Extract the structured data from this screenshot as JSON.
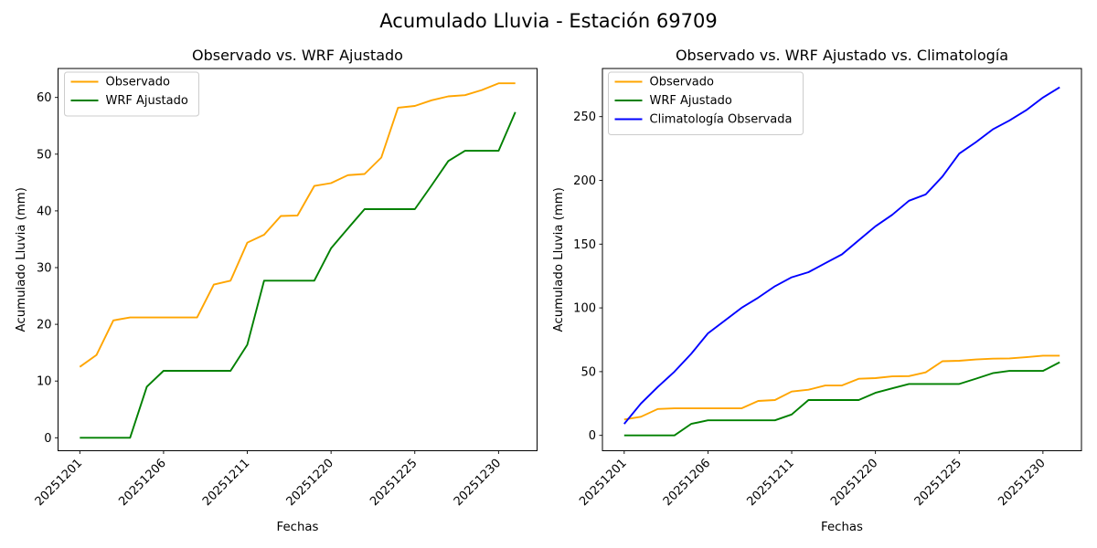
{
  "figure": {
    "suptitle": "Acumulado Lluvia - Estación 69709"
  },
  "chart_data": [
    {
      "type": "line",
      "title": "Observado vs. WRF Ajustado",
      "xlabel": "Fechas",
      "ylabel": "Acumulado Lluvia (mm)",
      "x_categories": [
        "20251201",
        "20251202",
        "20251203",
        "20251204",
        "20251205",
        "20251206",
        "20251207",
        "20251208",
        "20251209",
        "20251210",
        "20251211",
        "20251216",
        "20251217",
        "20251218",
        "20251219",
        "20251220",
        "20251221",
        "20251222",
        "20251223",
        "20251224",
        "20251225",
        "20251226",
        "20251227",
        "20251228",
        "20251229",
        "20251230",
        "20251231"
      ],
      "x_tick_indices": [
        0,
        5,
        10,
        15,
        20,
        25
      ],
      "x_tick_labels": [
        "20251201",
        "20251206",
        "20251211",
        "20251220",
        "20251225",
        "20251230"
      ],
      "y_ticks": [
        0,
        10,
        20,
        30,
        40,
        50,
        60
      ],
      "ylim": [
        -3.1,
        65.6
      ],
      "grid": false,
      "legend_position": "upper left",
      "series": [
        {
          "name": "Observado",
          "color": "#FFA500",
          "values": [
            12.5,
            14.6,
            20.7,
            21.2,
            21.2,
            21.2,
            21.2,
            21.2,
            27.0,
            27.7,
            34.4,
            35.8,
            39.1,
            39.2,
            44.4,
            44.9,
            46.3,
            46.5,
            49.4,
            58.2,
            58.5,
            59.5,
            60.2,
            60.4,
            61.3,
            62.5,
            62.5
          ]
        },
        {
          "name": "WRF Ajustado",
          "color": "#008000",
          "values": [
            0,
            0,
            0,
            0,
            9.0,
            11.8,
            11.8,
            11.8,
            11.8,
            11.8,
            16.4,
            27.7,
            27.7,
            27.7,
            27.7,
            33.4,
            36.9,
            40.3,
            40.3,
            40.3,
            40.3,
            44.5,
            48.8,
            50.6,
            50.6,
            50.6,
            57.4
          ]
        }
      ]
    },
    {
      "type": "line",
      "title": "Observado vs. WRF Ajustado vs. Climatología",
      "xlabel": "Fechas",
      "ylabel": "Acumulado Lluvia (mm)",
      "x_categories": [
        "20251201",
        "20251202",
        "20251203",
        "20251204",
        "20251205",
        "20251206",
        "20251207",
        "20251208",
        "20251209",
        "20251210",
        "20251211",
        "20251216",
        "20251217",
        "20251218",
        "20251219",
        "20251220",
        "20251221",
        "20251222",
        "20251223",
        "20251224",
        "20251225",
        "20251226",
        "20251227",
        "20251228",
        "20251229",
        "20251230",
        "20251231"
      ],
      "x_tick_indices": [
        0,
        5,
        10,
        15,
        20,
        25
      ],
      "x_tick_labels": [
        "20251201",
        "20251206",
        "20251211",
        "20251220",
        "20251225",
        "20251230"
      ],
      "y_ticks": [
        0,
        50,
        100,
        150,
        200,
        250
      ],
      "ylim": [
        -13.7,
        287.1
      ],
      "grid": false,
      "legend_position": "upper left",
      "series": [
        {
          "name": "Observado",
          "color": "#FFA500",
          "values": [
            12.5,
            14.6,
            20.7,
            21.2,
            21.2,
            21.2,
            21.2,
            21.2,
            27.0,
            27.7,
            34.4,
            35.8,
            39.1,
            39.2,
            44.4,
            44.9,
            46.3,
            46.5,
            49.4,
            58.2,
            58.5,
            59.5,
            60.2,
            60.4,
            61.3,
            62.5,
            62.5
          ]
        },
        {
          "name": "WRF Ajustado",
          "color": "#008000",
          "values": [
            0,
            0,
            0,
            0,
            9.0,
            11.8,
            11.8,
            11.8,
            11.8,
            11.8,
            16.4,
            27.7,
            27.7,
            27.7,
            27.7,
            33.4,
            36.9,
            40.3,
            40.3,
            40.3,
            40.3,
            44.5,
            48.8,
            50.6,
            50.6,
            50.6,
            57.4
          ]
        },
        {
          "name": "Climatología Observada",
          "color": "#0000FF",
          "values": [
            9,
            25,
            38,
            50,
            64,
            80,
            90,
            100,
            108,
            117,
            124,
            128,
            135,
            142,
            153,
            164,
            173,
            184,
            189,
            203,
            221,
            230,
            240,
            247,
            255,
            265,
            273
          ]
        }
      ]
    }
  ]
}
